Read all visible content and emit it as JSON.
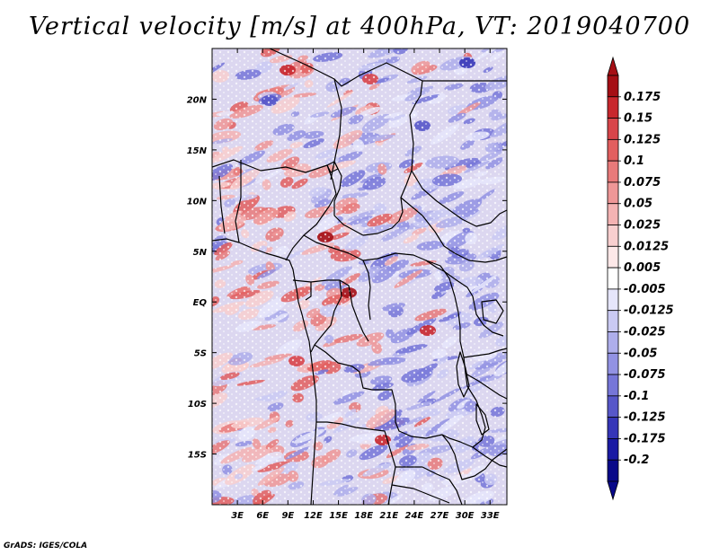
{
  "title": "Vertical velocity [m/s] at 400hPa, VT: 2019040700",
  "credit": "GrADS: IGES/COLA",
  "map": {
    "lon_labels": [
      "3E",
      "6E",
      "9E",
      "12E",
      "15E",
      "18E",
      "21E",
      "24E",
      "27E",
      "30E",
      "33E"
    ],
    "lon_values": [
      3,
      6,
      9,
      12,
      15,
      18,
      21,
      24,
      27,
      30,
      33
    ],
    "lon_range": [
      0,
      35
    ],
    "lat_labels": [
      "20N",
      "15N",
      "10N",
      "5N",
      "EQ",
      "5S",
      "10S",
      "15S"
    ],
    "lat_values": [
      20,
      15,
      10,
      5,
      0,
      -5,
      -10,
      -15
    ],
    "lat_range": [
      -20,
      25
    ]
  },
  "colorbar": {
    "labels": [
      "0.175",
      "0.15",
      "0.125",
      "0.1",
      "0.075",
      "0.05",
      "0.025",
      "0.0125",
      "0.005",
      "-0.005",
      "-0.0125",
      "-0.025",
      "-0.05",
      "-0.075",
      "-0.1",
      "-0.125",
      "-0.175",
      "-0.2"
    ],
    "colors": [
      "#a50f15",
      "#c8272d",
      "#d8454a",
      "#e25f5f",
      "#e87a7a",
      "#ee9797",
      "#f4b3b3",
      "#f8cfcf",
      "#fde8e8",
      "#ffffff",
      "#e6e6fb",
      "#cacaf3",
      "#aeaeeb",
      "#9292e3",
      "#7676d8",
      "#5757c9",
      "#3636b8",
      "#1a1aa4",
      "#080889"
    ],
    "top_color": "#a50f15",
    "bottom_color": "#080889"
  },
  "colors": {
    "field_red": "#e06060",
    "field_blue": "#6a6ae0",
    "border": "#000000"
  }
}
